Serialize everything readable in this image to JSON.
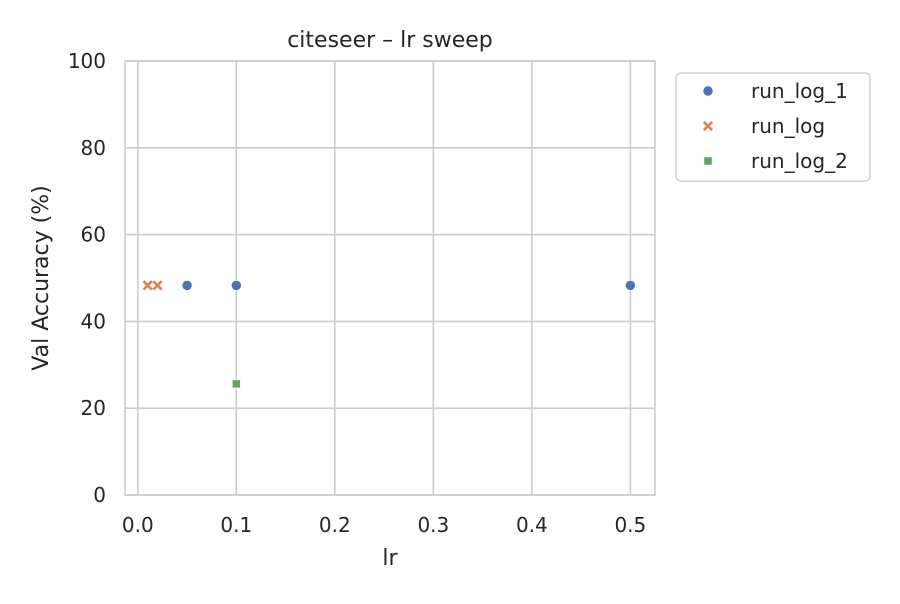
{
  "chart_data": {
    "type": "scatter",
    "title": "citeseer – lr sweep",
    "xlabel": "lr",
    "ylabel": "Val Accuracy (%)",
    "xlim": [
      -0.013,
      0.525
    ],
    "ylim": [
      0,
      100
    ],
    "xticks": [
      0.0,
      0.1,
      0.2,
      0.3,
      0.4,
      0.5
    ],
    "xtick_labels": [
      "0.0",
      "0.1",
      "0.2",
      "0.3",
      "0.4",
      "0.5"
    ],
    "yticks": [
      0,
      20,
      40,
      60,
      80,
      100
    ],
    "ytick_labels": [
      "0",
      "20",
      "40",
      "60",
      "80",
      "100"
    ],
    "grid": true,
    "legend_position": "outside-right-top",
    "series": [
      {
        "name": "run_log_1",
        "marker": "circle",
        "color": "#4c72b0",
        "points": [
          {
            "x": 0.05,
            "y": 48.3
          },
          {
            "x": 0.1,
            "y": 48.3
          },
          {
            "x": 0.5,
            "y": 48.3
          }
        ]
      },
      {
        "name": "run_log",
        "marker": "x",
        "color": "#dd8452",
        "points": [
          {
            "x": 0.01,
            "y": 48.3
          },
          {
            "x": 0.02,
            "y": 48.3
          }
        ]
      },
      {
        "name": "run_log_2",
        "marker": "square",
        "color": "#55a868",
        "points": [
          {
            "x": 0.1,
            "y": 25.6
          }
        ]
      }
    ]
  }
}
